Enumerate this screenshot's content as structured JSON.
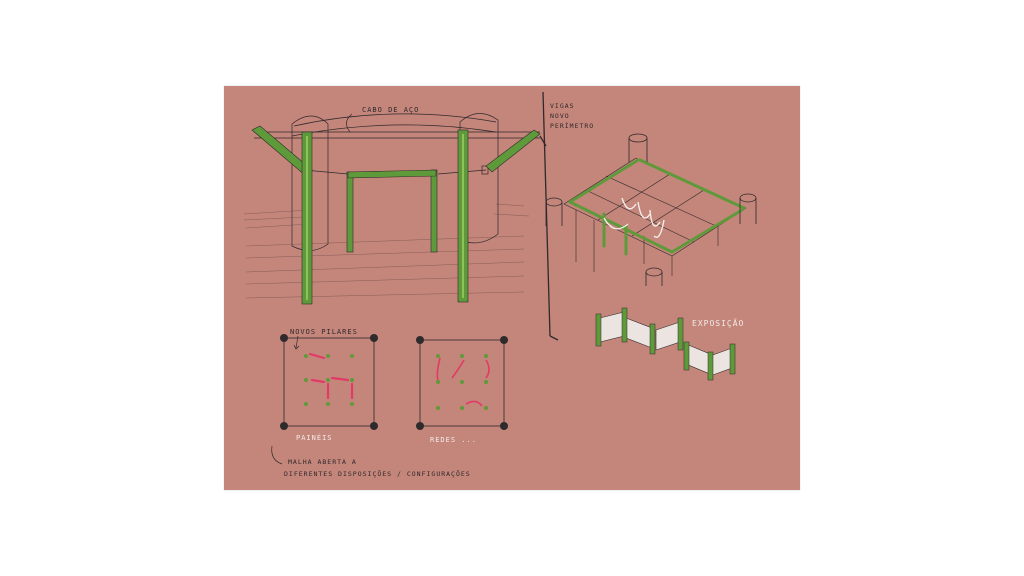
{
  "labels": {
    "cable": "CABO DE AÇO",
    "beams_1": "VIGAS",
    "beams_2": "NOVO",
    "beams_3": "PERÍMETRO",
    "new_pillars": "NOVOS PILARES",
    "panels": "PAINÉIS",
    "nodes": "REDES ...",
    "exhibition": "EXPOSIÇÃO",
    "note_1": "MALHA ABERTA A",
    "note_2": "DIFERENTES DISPOSIÇÕES / CONFIGURAÇÕES"
  },
  "colors": {
    "paper": "#c4857a",
    "pencil": "#2f2a2c",
    "green": "#5f9a3a",
    "green_light": "#8fc25a",
    "white_pencil": "#f2ece9",
    "pink": "#e23a66"
  }
}
